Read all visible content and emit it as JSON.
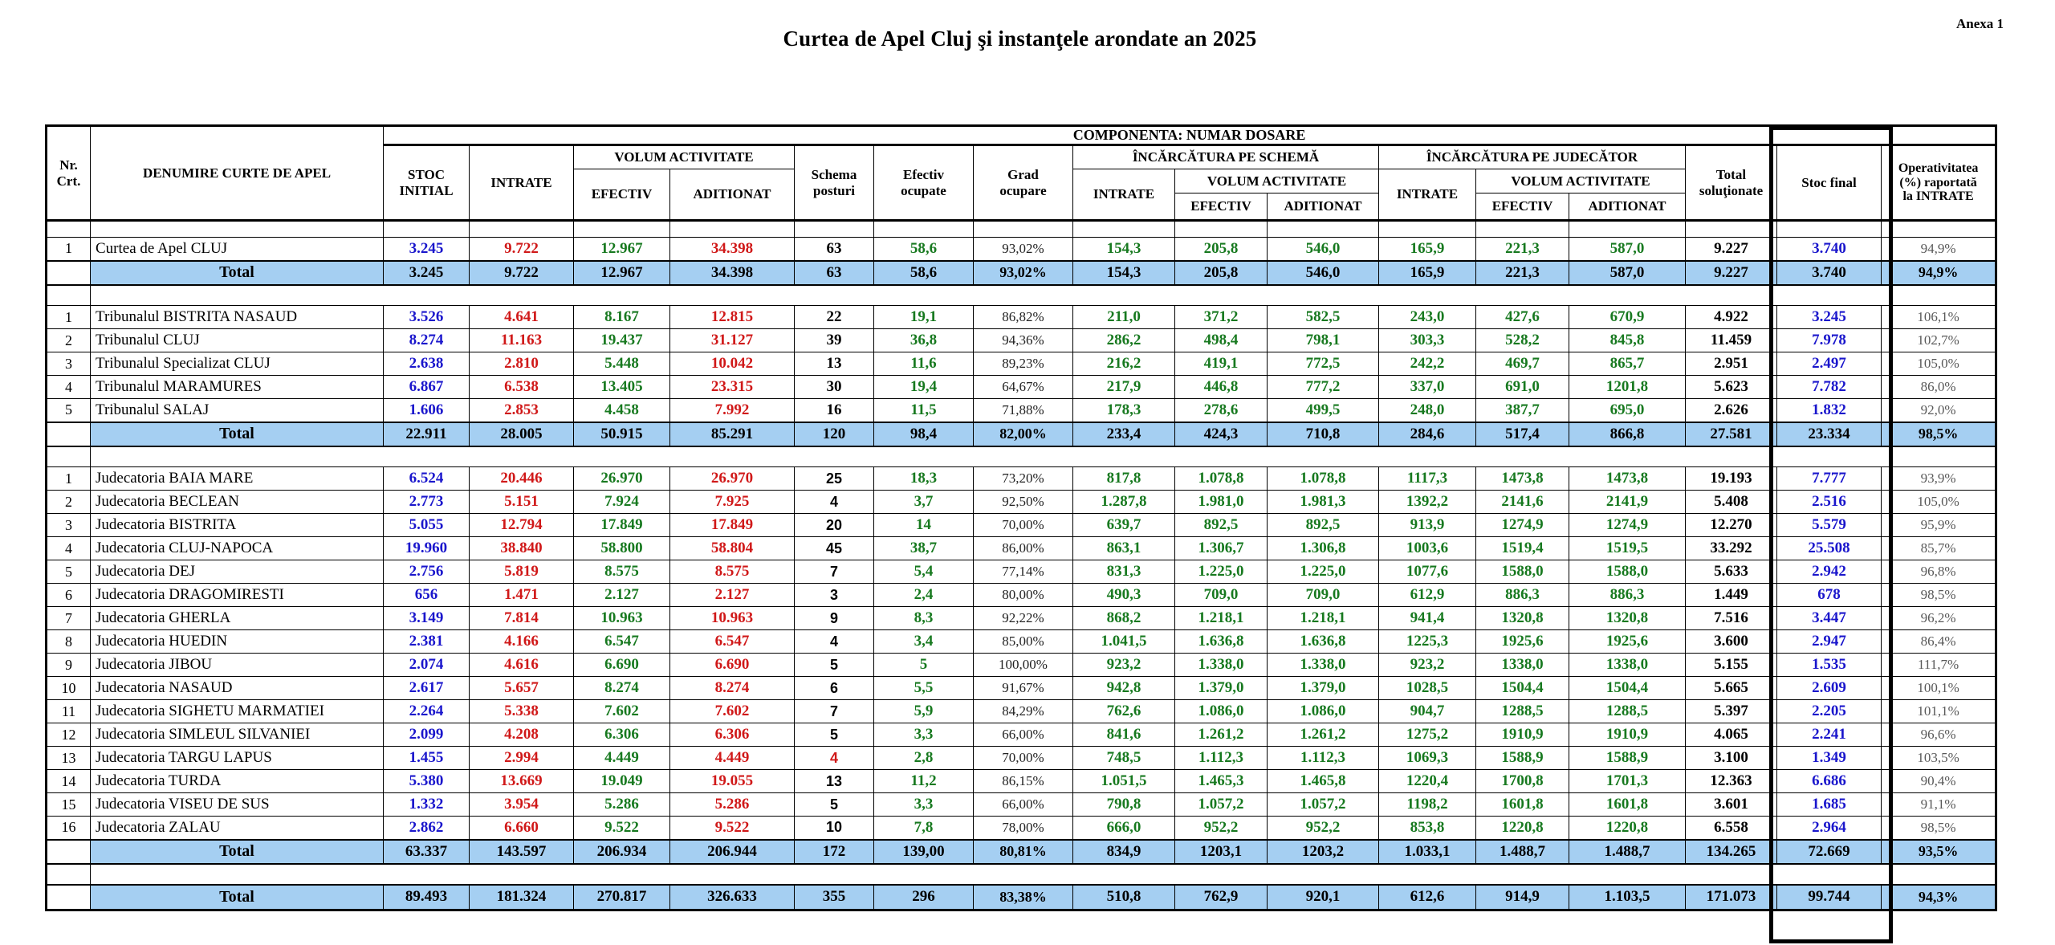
{
  "page": {
    "title": "Curtea de Apel Cluj şi instanţele arondate an 2025",
    "annex": "Anexa 1"
  },
  "colors": {
    "value_blue": "#1a16cc",
    "value_red": "#d01818",
    "value_green": "#17791f",
    "value_gray": "#595959",
    "total_row_bg": "#a5cff2",
    "border": "#000000"
  },
  "header": {
    "nr": "Nr.\nCrt.",
    "denumire": "DENUMIRE CURTE DE APEL",
    "componenta": "COMPONENTA: NUMAR DOSARE",
    "stoc_initial": "STOC\nINITIAL",
    "intrate": "INTRATE",
    "volum_activitate": "VOLUM ACTIVITATE",
    "efectiv": "EFECTIV",
    "aditionat": "ADITIONAT",
    "schema_posturi": "Schema\nposturi",
    "efectiv_ocupate": "Efectiv\nocupate",
    "grad_ocupare": "Grad\nocupare",
    "incarcatura_schema": "ÎNCĂRCĂTURA PE SCHEMĂ",
    "incarcatura_judecator": "ÎNCĂRCĂTURA PE JUDECĂTOR",
    "total_solutionate": "Total\nsoluţionate",
    "stoc_final": "Stoc final",
    "operativitatea": "Operativitatea\n(%) raportată\nla INTRATE",
    "total_label": "Total"
  },
  "sections": [
    {
      "id": "curtea-de-apel",
      "rows": [
        {
          "nr": "1",
          "name": "Curtea de Apel CLUJ",
          "values": [
            "3.245",
            "9.722",
            "12.967",
            "34.398",
            "63",
            "58,6",
            "93,02%",
            "154,3",
            "205,8",
            "546,0",
            "165,9",
            "221,3",
            "587,0",
            "9.227",
            "3.740",
            "94,9%"
          ]
        }
      ],
      "total": [
        "3.245",
        "9.722",
        "12.967",
        "34.398",
        "63",
        "58,6",
        "93,02%",
        "154,3",
        "205,8",
        "546,0",
        "165,9",
        "221,3",
        "587,0",
        "9.227",
        "3.740",
        "94,9%"
      ]
    },
    {
      "id": "tribunale",
      "rows": [
        {
          "nr": "1",
          "name": "Tribunalul BISTRITA NASAUD",
          "values": [
            "3.526",
            "4.641",
            "8.167",
            "12.815",
            "22",
            "19,1",
            "86,82%",
            "211,0",
            "371,2",
            "582,5",
            "243,0",
            "427,6",
            "670,9",
            "4.922",
            "3.245",
            "106,1%"
          ]
        },
        {
          "nr": "2",
          "name": "Tribunalul CLUJ",
          "values": [
            "8.274",
            "11.163",
            "19.437",
            "31.127",
            "39",
            "36,8",
            "94,36%",
            "286,2",
            "498,4",
            "798,1",
            "303,3",
            "528,2",
            "845,8",
            "11.459",
            "7.978",
            "102,7%"
          ]
        },
        {
          "nr": "3",
          "name": "Tribunalul Specializat CLUJ",
          "values": [
            "2.638",
            "2.810",
            "5.448",
            "10.042",
            "13",
            "11,6",
            "89,23%",
            "216,2",
            "419,1",
            "772,5",
            "242,2",
            "469,7",
            "865,7",
            "2.951",
            "2.497",
            "105,0%"
          ]
        },
        {
          "nr": "4",
          "name": "Tribunalul MARAMURES",
          "values": [
            "6.867",
            "6.538",
            "13.405",
            "23.315",
            "30",
            "19,4",
            "64,67%",
            "217,9",
            "446,8",
            "777,2",
            "337,0",
            "691,0",
            "1201,8",
            "5.623",
            "7.782",
            "86,0%"
          ]
        },
        {
          "nr": "5",
          "name": "Tribunalul SALAJ",
          "values": [
            "1.606",
            "2.853",
            "4.458",
            "7.992",
            "16",
            "11,5",
            "71,88%",
            "178,3",
            "278,6",
            "499,5",
            "248,0",
            "387,7",
            "695,0",
            "2.626",
            "1.832",
            "92,0%"
          ]
        }
      ],
      "total": [
        "22.911",
        "28.005",
        "50.915",
        "85.291",
        "120",
        "98,4",
        "82,00%",
        "233,4",
        "424,3",
        "710,8",
        "284,6",
        "517,4",
        "866,8",
        "27.581",
        "23.334",
        "98,5%"
      ]
    },
    {
      "id": "judecatorii",
      "schema_sans": true,
      "rows": [
        {
          "nr": "1",
          "name": "Judecatoria BAIA MARE",
          "values": [
            "6.524",
            "20.446",
            "26.970",
            "26.970",
            "25",
            "18,3",
            "73,20%",
            "817,8",
            "1.078,8",
            "1.078,8",
            "1117,3",
            "1473,8",
            "1473,8",
            "19.193",
            "7.777",
            "93,9%"
          ]
        },
        {
          "nr": "2",
          "name": "Judecatoria BECLEAN",
          "values": [
            "2.773",
            "5.151",
            "7.924",
            "7.925",
            "4",
            "3,7",
            "92,50%",
            "1.287,8",
            "1.981,0",
            "1.981,3",
            "1392,2",
            "2141,6",
            "2141,9",
            "5.408",
            "2.516",
            "105,0%"
          ]
        },
        {
          "nr": "3",
          "name": "Judecatoria BISTRITA",
          "values": [
            "5.055",
            "12.794",
            "17.849",
            "17.849",
            "20",
            "14",
            "70,00%",
            "639,7",
            "892,5",
            "892,5",
            "913,9",
            "1274,9",
            "1274,9",
            "12.270",
            "5.579",
            "95,9%"
          ]
        },
        {
          "nr": "4",
          "name": "Judecatoria CLUJ-NAPOCA",
          "values": [
            "19.960",
            "38.840",
            "58.800",
            "58.804",
            "45",
            "38,7",
            "86,00%",
            "863,1",
            "1.306,7",
            "1.306,8",
            "1003,6",
            "1519,4",
            "1519,5",
            "33.292",
            "25.508",
            "85,7%"
          ]
        },
        {
          "nr": "5",
          "name": "Judecatoria DEJ",
          "values": [
            "2.756",
            "5.819",
            "8.575",
            "8.575",
            "7",
            "5,4",
            "77,14%",
            "831,3",
            "1.225,0",
            "1.225,0",
            "1077,6",
            "1588,0",
            "1588,0",
            "5.633",
            "2.942",
            "96,8%"
          ]
        },
        {
          "nr": "6",
          "name": "Judecatoria DRAGOMIRESTI",
          "values": [
            "656",
            "1.471",
            "2.127",
            "2.127",
            "3",
            "2,4",
            "80,00%",
            "490,3",
            "709,0",
            "709,0",
            "612,9",
            "886,3",
            "886,3",
            "1.449",
            "678",
            "98,5%"
          ]
        },
        {
          "nr": "7",
          "name": "Judecatoria GHERLA",
          "values": [
            "3.149",
            "7.814",
            "10.963",
            "10.963",
            "9",
            "8,3",
            "92,22%",
            "868,2",
            "1.218,1",
            "1.218,1",
            "941,4",
            "1320,8",
            "1320,8",
            "7.516",
            "3.447",
            "96,2%"
          ]
        },
        {
          "nr": "8",
          "name": "Judecatoria HUEDIN",
          "values": [
            "2.381",
            "4.166",
            "6.547",
            "6.547",
            "4",
            "3,4",
            "85,00%",
            "1.041,5",
            "1.636,8",
            "1.636,8",
            "1225,3",
            "1925,6",
            "1925,6",
            "3.600",
            "2.947",
            "86,4%"
          ]
        },
        {
          "nr": "9",
          "name": "Judecatoria JIBOU",
          "values": [
            "2.074",
            "4.616",
            "6.690",
            "6.690",
            "5",
            "5",
            "100,00%",
            "923,2",
            "1.338,0",
            "1.338,0",
            "923,2",
            "1338,0",
            "1338,0",
            "5.155",
            "1.535",
            "111,7%"
          ]
        },
        {
          "nr": "10",
          "name": "Judecatoria NASAUD",
          "values": [
            "2.617",
            "5.657",
            "8.274",
            "8.274",
            "6",
            "5,5",
            "91,67%",
            "942,8",
            "1.379,0",
            "1.379,0",
            "1028,5",
            "1504,4",
            "1504,4",
            "5.665",
            "2.609",
            "100,1%"
          ]
        },
        {
          "nr": "11",
          "name": "Judecatoria SIGHETU MARMATIEI",
          "values": [
            "2.264",
            "5.338",
            "7.602",
            "7.602",
            "7",
            "5,9",
            "84,29%",
            "762,6",
            "1.086,0",
            "1.086,0",
            "904,7",
            "1288,5",
            "1288,5",
            "5.397",
            "2.205",
            "101,1%"
          ]
        },
        {
          "nr": "12",
          "name": "Judecatoria SIMLEUL SILVANIEI",
          "values": [
            "2.099",
            "4.208",
            "6.306",
            "6.306",
            "5",
            "3,3",
            "66,00%",
            "841,6",
            "1.261,2",
            "1.261,2",
            "1275,2",
            "1910,9",
            "1910,9",
            "4.065",
            "2.241",
            "96,6%"
          ]
        },
        {
          "nr": "13",
          "name": "Judecatoria TARGU LAPUS",
          "schema_red": true,
          "values": [
            "1.455",
            "2.994",
            "4.449",
            "4.449",
            "4",
            "2,8",
            "70,00%",
            "748,5",
            "1.112,3",
            "1.112,3",
            "1069,3",
            "1588,9",
            "1588,9",
            "3.100",
            "1.349",
            "103,5%"
          ]
        },
        {
          "nr": "14",
          "name": "Judecatoria TURDA",
          "values": [
            "5.380",
            "13.669",
            "19.049",
            "19.055",
            "13",
            "11,2",
            "86,15%",
            "1.051,5",
            "1.465,3",
            "1.465,8",
            "1220,4",
            "1700,8",
            "1701,3",
            "12.363",
            "6.686",
            "90,4%"
          ]
        },
        {
          "nr": "15",
          "name": "Judecatoria VISEU DE SUS",
          "values": [
            "1.332",
            "3.954",
            "5.286",
            "5.286",
            "5",
            "3,3",
            "66,00%",
            "790,8",
            "1.057,2",
            "1.057,2",
            "1198,2",
            "1601,8",
            "1601,8",
            "3.601",
            "1.685",
            "91,1%"
          ]
        },
        {
          "nr": "16",
          "name": "Judecatoria ZALAU",
          "values": [
            "2.862",
            "6.660",
            "9.522",
            "9.522",
            "10",
            "7,8",
            "78,00%",
            "666,0",
            "952,2",
            "952,2",
            "853,8",
            "1220,8",
            "1220,8",
            "6.558",
            "2.964",
            "98,5%"
          ]
        }
      ],
      "total": [
        "63.337",
        "143.597",
        "206.934",
        "206.944",
        "172",
        "139,00",
        "80,81%",
        "834,9",
        "1203,1",
        "1203,2",
        "1.033,1",
        "1.488,7",
        "1.488,7",
        "134.265",
        "72.669",
        "93,5%"
      ]
    }
  ],
  "grand_total": [
    "89.493",
    "181.324",
    "270.817",
    "326.633",
    "355",
    "296",
    "83,38%",
    "510,8",
    "762,9",
    "920,1",
    "612,6",
    "914,9",
    "1.103,5",
    "171.073",
    "99.744",
    "94,3%"
  ]
}
